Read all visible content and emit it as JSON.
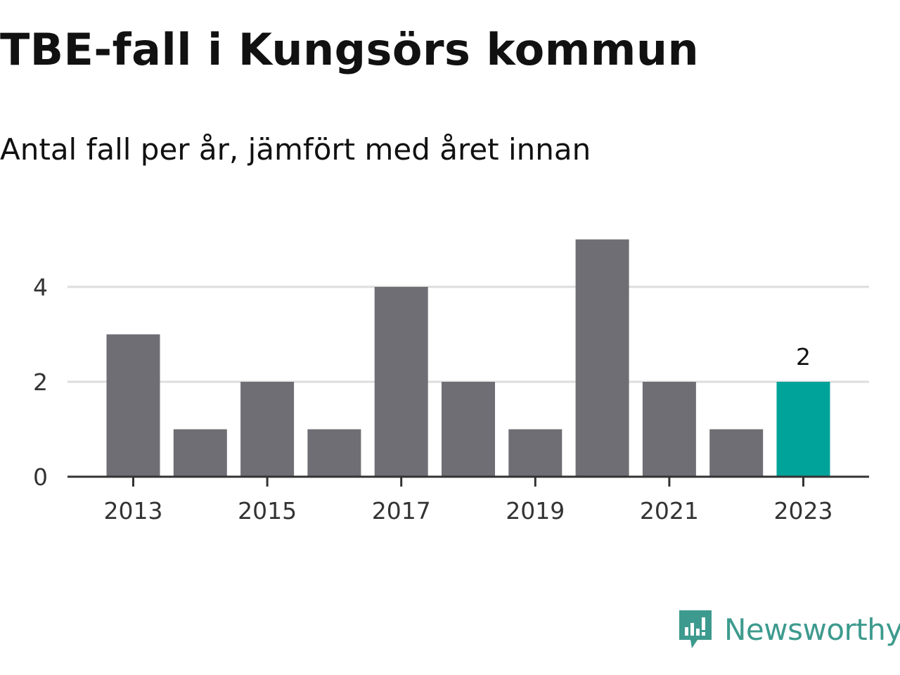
{
  "header": {
    "title": "TBE-fall i Kungsörs kommun",
    "subtitle": "Antal fall per år, jämfört med året innan"
  },
  "chart_data": {
    "type": "bar",
    "categories": [
      "2013",
      "2014",
      "2015",
      "2016",
      "2017",
      "2018",
      "2019",
      "2020",
      "2021",
      "2022",
      "2023"
    ],
    "values": [
      3,
      1,
      2,
      1,
      4,
      2,
      1,
      5,
      2,
      1,
      2
    ],
    "title": "TBE-fall i Kungsörs kommun",
    "subtitle": "Antal fall per år, jämfört med året innan",
    "x_tick_labels": [
      "2013",
      "2015",
      "2017",
      "2019",
      "2021",
      "2023"
    ],
    "y_ticks": [
      0,
      2,
      4
    ],
    "ylim": [
      0,
      5
    ],
    "grid": true,
    "legend": "none",
    "highlight": {
      "category": "2023",
      "value_label": "2"
    },
    "colors": {
      "bar": "#6f6e74",
      "highlight": "#00a39a",
      "gridline": "#dddddd",
      "axis": "#333333"
    }
  },
  "brand": {
    "name": "Newsworthy",
    "icon": "newsworthy-logo-icon",
    "color": "#3d9a8e"
  }
}
